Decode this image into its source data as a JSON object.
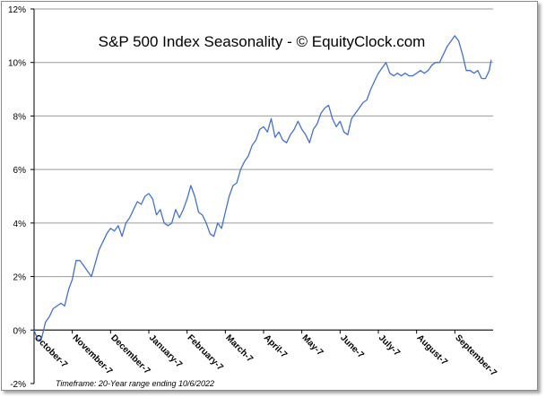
{
  "chart_data": {
    "type": "line",
    "title": "S&P 500 Index Seasonality - © EquityClock.com",
    "footnote": "Timeframe: 20-Year range ending 10/6/2022",
    "xlabel": "",
    "ylabel": "",
    "ylim": [
      -2,
      12
    ],
    "yticks": [
      -2,
      0,
      2,
      4,
      6,
      8,
      10,
      12
    ],
    "ytick_labels": [
      "-2%",
      "0%",
      "2%",
      "4%",
      "6%",
      "8%",
      "10%",
      "12%"
    ],
    "xlim": [
      0,
      12
    ],
    "xticks": [
      0,
      1,
      2,
      3,
      4,
      5,
      6,
      7,
      8,
      9,
      10,
      11
    ],
    "xtick_labels": [
      "October-7",
      "November-7",
      "December-7",
      "January-7",
      "February-7",
      "March-7",
      "April-7",
      "May-7",
      "June-7",
      "July-7",
      "August-7",
      "September-7"
    ],
    "grid": true,
    "series": [
      {
        "name": "S&P 500 Index Seasonality",
        "color": "#4472c4",
        "x": [
          0,
          0.1,
          0.2,
          0.3,
          0.4,
          0.5,
          0.6,
          0.7,
          0.8,
          0.9,
          1.0,
          1.1,
          1.2,
          1.3,
          1.4,
          1.5,
          1.6,
          1.7,
          1.8,
          1.9,
          2.0,
          2.1,
          2.2,
          2.3,
          2.4,
          2.5,
          2.6,
          2.7,
          2.8,
          2.9,
          3.0,
          3.1,
          3.2,
          3.3,
          3.4,
          3.5,
          3.6,
          3.7,
          3.8,
          3.9,
          4.0,
          4.1,
          4.2,
          4.3,
          4.4,
          4.5,
          4.6,
          4.7,
          4.8,
          4.9,
          5.0,
          5.1,
          5.2,
          5.3,
          5.4,
          5.5,
          5.6,
          5.7,
          5.8,
          5.9,
          6.0,
          6.1,
          6.2,
          6.3,
          6.4,
          6.5,
          6.6,
          6.7,
          6.8,
          6.9,
          7.0,
          7.1,
          7.2,
          7.3,
          7.4,
          7.5,
          7.6,
          7.7,
          7.8,
          7.9,
          8.0,
          8.1,
          8.2,
          8.3,
          8.4,
          8.5,
          8.6,
          8.7,
          8.8,
          8.9,
          9.0,
          9.1,
          9.2,
          9.3,
          9.4,
          9.5,
          9.6,
          9.7,
          9.8,
          9.9,
          10.0,
          10.1,
          10.2,
          10.3,
          10.4,
          10.5,
          10.6,
          10.7,
          10.8,
          10.9,
          11.0,
          11.1,
          11.2,
          11.3,
          11.4,
          11.5,
          11.6,
          11.7,
          11.8,
          11.9,
          11.95
        ],
        "values": [
          0,
          -0.4,
          -0.3,
          0.3,
          0.5,
          0.8,
          0.9,
          1.0,
          0.9,
          1.5,
          1.9,
          2.6,
          2.6,
          2.4,
          2.2,
          2.0,
          2.5,
          3.0,
          3.3,
          3.6,
          3.8,
          3.7,
          3.9,
          3.5,
          4.0,
          4.2,
          4.5,
          4.8,
          4.7,
          5.0,
          5.1,
          4.9,
          4.3,
          4.5,
          4.0,
          3.9,
          4.0,
          4.5,
          4.2,
          4.5,
          4.9,
          5.4,
          5.0,
          4.4,
          4.3,
          4.0,
          3.6,
          3.5,
          4.0,
          3.8,
          4.4,
          5.0,
          5.4,
          5.5,
          6.0,
          6.3,
          6.5,
          6.9,
          7.1,
          7.5,
          7.6,
          7.4,
          7.9,
          7.2,
          7.4,
          7.1,
          7.0,
          7.3,
          7.5,
          7.8,
          7.5,
          7.3,
          7.0,
          7.5,
          7.7,
          8.1,
          8.3,
          8.4,
          7.9,
          7.6,
          7.8,
          7.4,
          7.3,
          7.9,
          8.1,
          8.3,
          8.5,
          8.6,
          9.0,
          9.3,
          9.6,
          9.8,
          10.0,
          9.6,
          9.5,
          9.6,
          9.5,
          9.6,
          9.5,
          9.5,
          9.6,
          9.7,
          9.6,
          9.7,
          9.9,
          10.0,
          10.0,
          10.3,
          10.6,
          10.8,
          11.0,
          10.8,
          10.3,
          9.7,
          9.7,
          9.6,
          9.7,
          9.4,
          9.4,
          9.7,
          10.1
        ]
      }
    ]
  }
}
